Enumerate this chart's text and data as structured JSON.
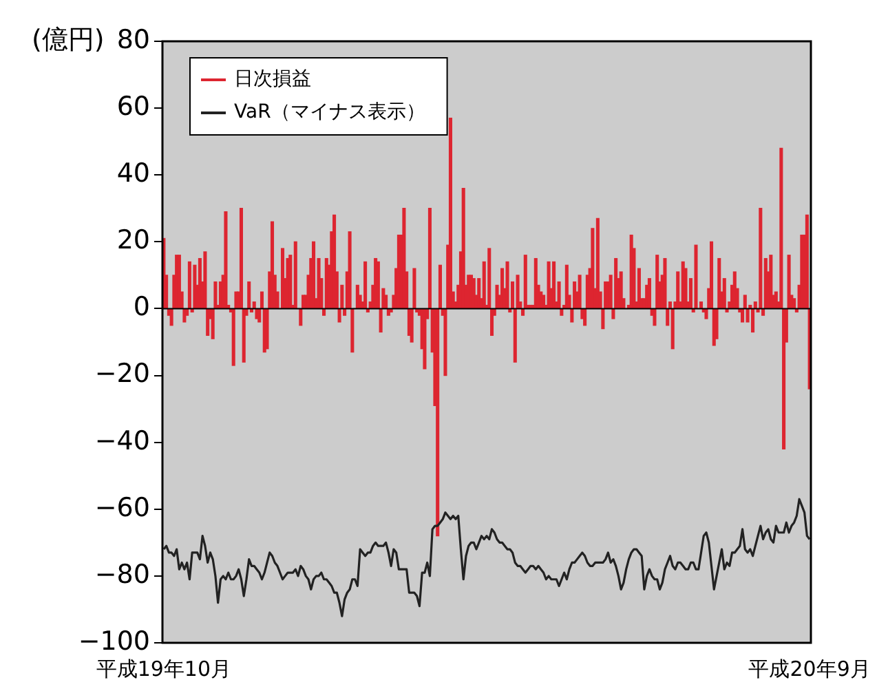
{
  "chart_data": {
    "type": "bar",
    "ylabel": "(億円)",
    "categories": [
      "平成19年10月",
      null,
      null,
      null,
      null,
      null,
      null,
      null,
      null,
      null,
      null,
      null,
      null,
      null,
      null,
      null,
      null,
      null,
      null,
      null,
      null,
      null,
      null,
      null,
      null,
      null,
      null,
      null,
      null,
      null,
      null,
      null,
      null,
      null,
      null,
      null,
      null,
      null,
      null,
      null,
      null,
      null,
      null,
      null,
      null,
      null,
      null,
      null,
      null,
      null,
      null,
      null,
      null,
      null,
      null,
      null,
      null,
      null,
      null,
      null,
      null,
      null,
      null,
      null,
      null,
      null,
      null,
      null,
      null,
      null,
      null,
      null,
      null,
      null,
      null,
      null,
      null,
      null,
      null,
      null,
      null,
      null,
      null,
      null,
      null,
      null,
      null,
      null,
      null,
      null,
      null,
      null,
      null,
      null,
      null,
      null,
      null,
      null,
      null,
      null,
      null,
      null,
      null,
      null,
      null,
      null,
      null,
      null,
      null,
      null,
      null,
      null,
      null,
      null,
      null,
      null,
      null,
      null,
      null,
      null,
      null,
      null,
      null,
      null,
      null,
      null,
      null,
      null,
      null,
      null,
      null,
      null,
      null,
      null,
      null,
      null,
      null,
      null,
      null,
      null,
      null,
      null,
      null,
      null,
      null,
      null,
      null,
      null,
      null,
      null,
      null,
      null,
      null,
      null,
      null,
      null,
      null,
      null,
      null,
      null,
      null,
      null,
      null,
      null,
      null,
      null,
      null,
      null,
      null,
      null,
      null,
      null,
      null,
      null,
      null,
      null,
      null,
      null,
      null,
      null,
      null,
      null,
      null,
      null,
      null,
      null,
      null,
      null,
      null,
      null,
      null,
      null,
      null,
      null,
      null,
      null,
      null,
      null,
      null,
      null,
      null,
      null,
      null,
      null,
      null,
      null,
      null,
      null,
      null,
      null,
      null,
      null,
      null,
      null,
      null,
      null,
      null,
      null,
      null,
      null,
      null,
      null,
      null,
      null,
      null,
      null,
      null,
      null,
      null,
      null,
      null,
      null,
      null,
      null,
      null,
      null,
      null,
      null,
      null,
      null,
      null,
      null,
      null,
      null,
      null,
      null,
      null,
      null,
      null,
      null,
      "平成20年9月"
    ],
    "series": [
      {
        "name": "日次損益",
        "type": "bar",
        "color": "#dd2530",
        "values": [
          21,
          10,
          -2,
          -5,
          10,
          16,
          16,
          5,
          -4,
          -2,
          14,
          -1,
          13,
          7,
          15,
          8,
          17,
          -8,
          -3,
          -9,
          8,
          1,
          8,
          10,
          29,
          1,
          -1,
          -17,
          5,
          5,
          30,
          -16,
          -2,
          8,
          -1,
          2,
          -3,
          -4,
          5,
          -13,
          -12,
          11,
          26,
          10,
          5,
          0,
          18,
          9,
          15,
          16,
          1,
          20,
          0,
          -5,
          4,
          4,
          10,
          15,
          20,
          3,
          15,
          9,
          -2,
          15,
          13,
          23,
          28,
          11,
          -4,
          7,
          -2,
          11,
          23,
          -13,
          0,
          7,
          4,
          2,
          14,
          -1,
          2,
          7,
          15,
          14,
          -7,
          6,
          4,
          -2,
          -1,
          4,
          12,
          22,
          22,
          30,
          11,
          -8,
          -10,
          12,
          -1,
          -2,
          -12,
          -18,
          -3,
          30,
          -13,
          -29,
          -68,
          13,
          -2,
          -20,
          19,
          57,
          5,
          2,
          7,
          17,
          36,
          7,
          10,
          10,
          9,
          4,
          9,
          3,
          14,
          1,
          18,
          -8,
          -2,
          7,
          4,
          12,
          6,
          14,
          -1,
          8,
          -16,
          10,
          2,
          -2,
          16,
          1,
          1,
          1,
          15,
          7,
          5,
          4,
          1,
          14,
          6,
          14,
          2,
          8,
          -2,
          1,
          13,
          4,
          -4,
          8,
          5,
          10,
          -3,
          -5,
          10,
          12,
          24,
          6,
          27,
          5,
          -6,
          8,
          8,
          10,
          -3,
          15,
          9,
          11,
          3,
          0,
          1,
          22,
          18,
          2,
          12,
          3,
          3,
          7,
          9,
          -2,
          -5,
          16,
          8,
          10,
          15,
          -5,
          2,
          -12,
          2,
          11,
          2,
          14,
          12,
          2,
          9,
          -1,
          19,
          0,
          2,
          -1,
          -3,
          6,
          20,
          -11,
          -9,
          15,
          5,
          9,
          -1,
          2,
          7,
          11,
          6,
          -1,
          -4,
          4,
          -4,
          1,
          -7,
          2,
          -1,
          30,
          -2,
          15,
          11,
          16,
          4,
          5,
          2,
          48,
          -42,
          -10,
          16,
          4,
          3,
          -1,
          7,
          22,
          22,
          28,
          -24
        ]
      },
      {
        "name": "VaR（マイナス表示）",
        "type": "line",
        "color": "#222222",
        "values": [
          -72,
          -71,
          -73,
          -73,
          -74,
          -72,
          -78,
          -76,
          -78,
          -76,
          -81,
          -73,
          -73,
          -73,
          -75,
          -68,
          -71,
          -76,
          -73,
          -75,
          -80,
          -88,
          -81,
          -80,
          -81,
          -79,
          -81,
          -81,
          -80,
          -78,
          -81,
          -86,
          -81,
          -75,
          -77,
          -77,
          -78,
          -79,
          -81,
          -79,
          -76,
          -73,
          -74,
          -76,
          -77,
          -79,
          -81,
          -80,
          -79,
          -79,
          -79,
          -78,
          -80,
          -77,
          -78,
          -80,
          -81,
          -84,
          -81,
          -80,
          -80,
          -79,
          -81,
          -81,
          -82,
          -83,
          -85,
          -85,
          -88,
          -92,
          -87,
          -85,
          -84,
          -81,
          -81,
          -83,
          -72,
          -73,
          -74,
          -73,
          -73,
          -71,
          -70,
          -71,
          -71,
          -71,
          -70,
          -73,
          -77,
          -72,
          -73,
          -78,
          -78,
          -78,
          -78,
          -85,
          -85,
          -85,
          -86,
          -89,
          -79,
          -79,
          -76,
          -80,
          -66,
          -65,
          -65,
          -64,
          -63,
          -61,
          -62,
          -63,
          -62,
          -63,
          -62,
          -72,
          -81,
          -74,
          -71,
          -70,
          -70,
          -72,
          -70,
          -68,
          -69,
          -68,
          -69,
          -66,
          -67,
          -69,
          -70,
          -70,
          -71,
          -72,
          -72,
          -73,
          -76,
          -77,
          -77,
          -78,
          -79,
          -78,
          -77,
          -77,
          -78,
          -77,
          -78,
          -79,
          -81,
          -80,
          -81,
          -81,
          -81,
          -83,
          -81,
          -79,
          -81,
          -78,
          -76,
          -76,
          -75,
          -74,
          -73,
          -74,
          -76,
          -77,
          -77,
          -76,
          -76,
          -76,
          -76,
          -75,
          -73,
          -76,
          -75,
          -77,
          -80,
          -84,
          -82,
          -78,
          -75,
          -73,
          -72,
          -72,
          -73,
          -74,
          -84,
          -80,
          -78,
          -80,
          -81,
          -81,
          -84,
          -82,
          -78,
          -76,
          -74,
          -77,
          -78,
          -76,
          -76,
          -77,
          -78,
          -78,
          -76,
          -76,
          -78,
          -78,
          -73,
          -68,
          -67,
          -70,
          -77,
          -84,
          -80,
          -76,
          -72,
          -78,
          -76,
          -77,
          -73,
          -73,
          -72,
          -71,
          -66,
          -72,
          -73,
          -72,
          -74,
          -71,
          -68,
          -65,
          -69,
          -67,
          -66,
          -69,
          -70,
          -65,
          -67,
          -67,
          -67,
          -64,
          -67,
          -65,
          -64,
          -62,
          -57,
          -59,
          -61,
          -68,
          -69
        ]
      }
    ],
    "ylim": [
      -100,
      80
    ],
    "yticks": [
      {
        "value": -100,
        "label": "−100"
      },
      {
        "value": -80,
        "label": "−80"
      },
      {
        "value": -60,
        "label": "−60"
      },
      {
        "value": -40,
        "label": "−40"
      },
      {
        "value": -20,
        "label": "−20"
      },
      0,
      20,
      40,
      60,
      80
    ],
    "ref_lines": [
      {
        "axis": "y",
        "value": 0,
        "color": "#000000"
      }
    ],
    "legend": "top left",
    "marker": "none"
  }
}
